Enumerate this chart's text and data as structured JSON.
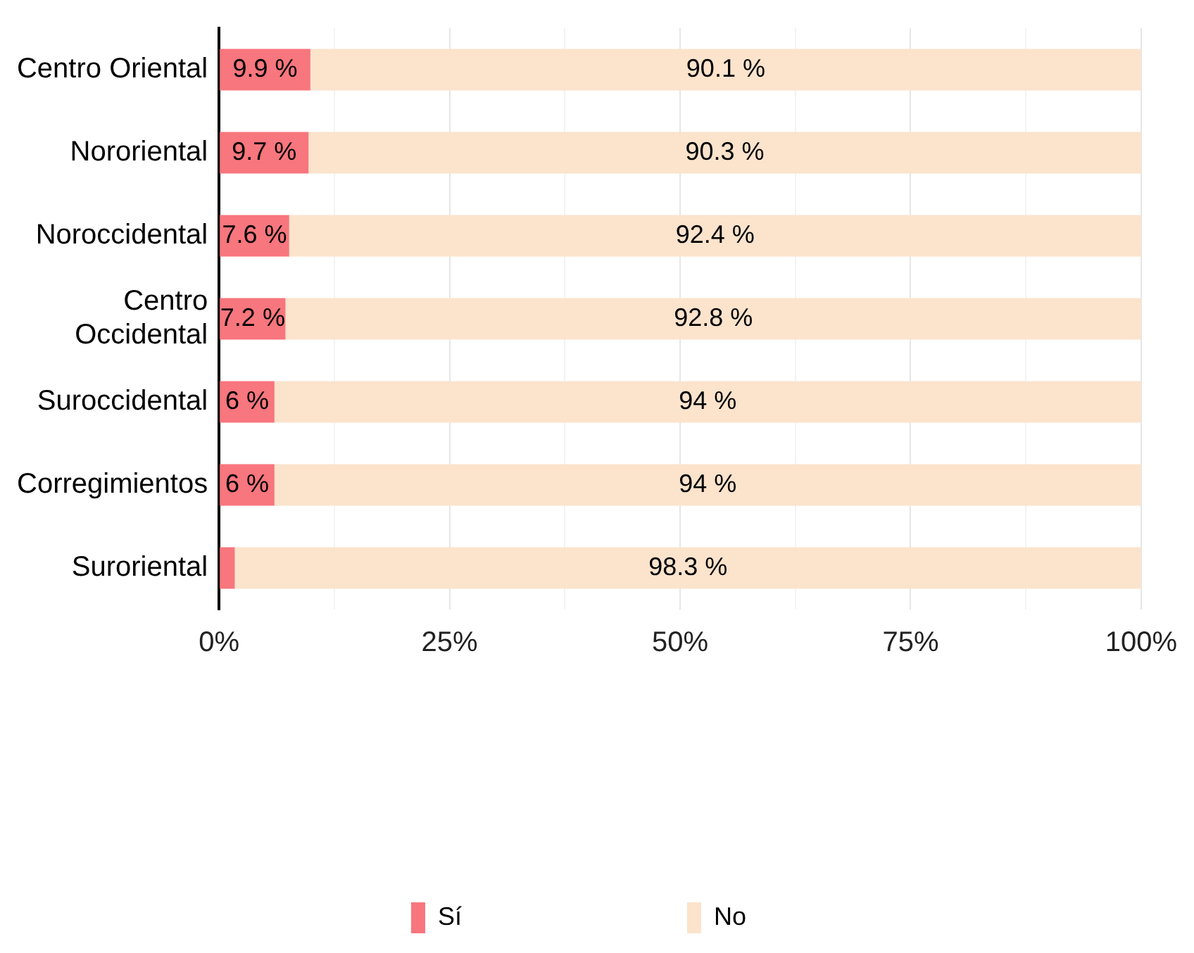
{
  "chart_data": {
    "type": "bar",
    "orientation": "horizontal",
    "stacked": true,
    "categories": [
      "Centro Oriental",
      "Nororiental",
      "Noroccidental",
      "Centro Occidental",
      "Suroccidental",
      "Corregimientos",
      "Suroriental"
    ],
    "series": [
      {
        "name": "Sí",
        "color": "#f8767d",
        "values": [
          9.9,
          9.7,
          7.6,
          7.2,
          6,
          6,
          1.7
        ],
        "value_labels": [
          "9.9 %",
          "9.7 %",
          "7.6 %",
          "7.2 %",
          "6 %",
          "6 %",
          null
        ]
      },
      {
        "name": "No",
        "color": "#fbe3cc",
        "values": [
          90.1,
          90.3,
          92.4,
          92.8,
          94,
          94,
          98.3
        ],
        "value_labels": [
          "90.1 %",
          "90.3 %",
          "92.4 %",
          "92.8 %",
          "94 %",
          "94 %",
          "98.3 %"
        ]
      }
    ],
    "xlim": [
      0,
      100
    ],
    "xticks": [
      {
        "value": 0,
        "label": "0%"
      },
      {
        "value": 12.5,
        "label": null
      },
      {
        "value": 25,
        "label": "25%"
      },
      {
        "value": 37.5,
        "label": null
      },
      {
        "value": 50,
        "label": "50%"
      },
      {
        "value": 62.5,
        "label": null
      },
      {
        "value": 75,
        "label": "75%"
      },
      {
        "value": 87.5,
        "label": null
      },
      {
        "value": 100,
        "label": "100%"
      }
    ],
    "grid": "x",
    "legend": "bottom"
  }
}
